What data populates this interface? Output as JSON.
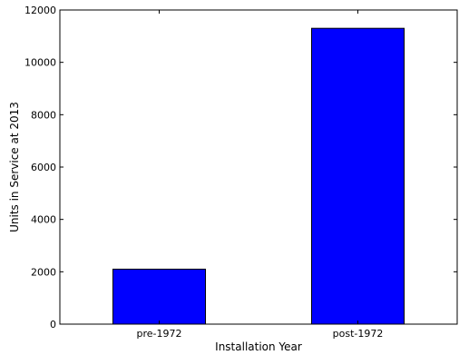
{
  "chart_data": {
    "type": "bar",
    "title": "",
    "xlabel": "Installation Year",
    "ylabel": "Units in Service at 2013",
    "categories": [
      "pre-1972",
      "post-1972"
    ],
    "values": [
      2100,
      11300
    ],
    "ylim": [
      0,
      12000
    ],
    "yticks": [
      0,
      2000,
      4000,
      6000,
      8000,
      10000,
      12000
    ],
    "ytick_labels": [
      "0",
      "2000",
      "4000",
      "6000",
      "8000",
      "10000",
      "12000"
    ],
    "bar_color": "#0000ff",
    "grid": false,
    "legend": "none"
  }
}
